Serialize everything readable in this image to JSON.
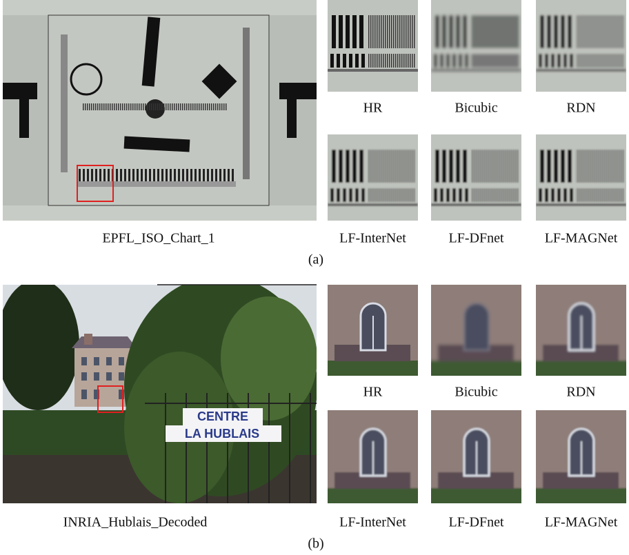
{
  "panels": [
    {
      "label": "(a)",
      "caption": "EPFL_ISO_Chart_1",
      "crops": [
        "HR",
        "Bicubic",
        "RDN",
        "LF-InterNet",
        "LF-DFnet",
        "LF-MAGNet"
      ]
    },
    {
      "label": "(b)",
      "caption": "INRIA_Hublais_Decoded",
      "crops": [
        "HR",
        "Bicubic",
        "RDN",
        "LF-InterNet",
        "LF-DFnet",
        "LF-MAGNet"
      ],
      "sign": [
        "CENTRE",
        "LA HUBLAIS"
      ]
    }
  ]
}
